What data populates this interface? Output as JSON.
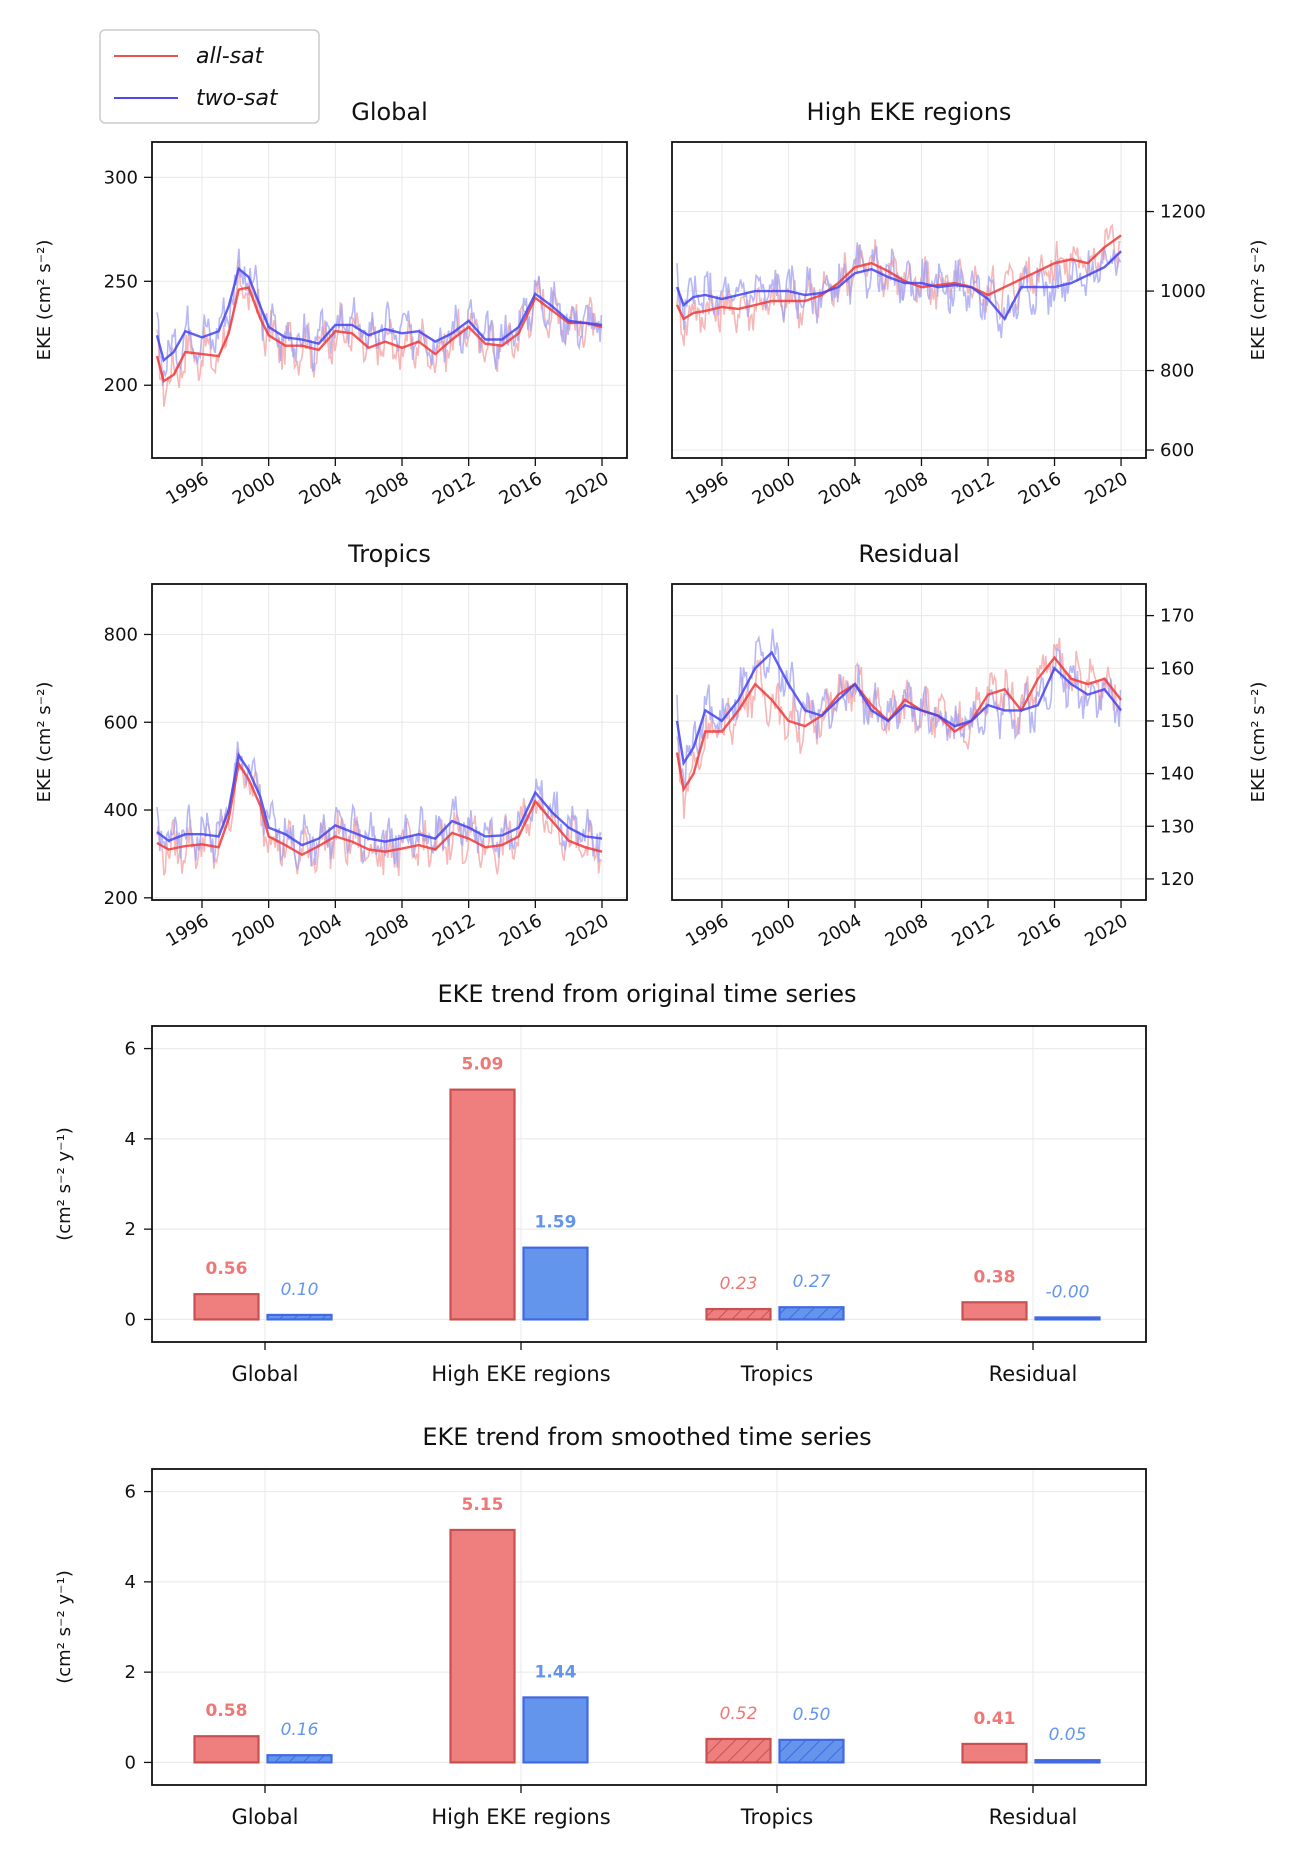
{
  "legend": {
    "entries": [
      {
        "label": "all-sat",
        "color": "#f05050"
      },
      {
        "label": "two-sat",
        "color": "#4a4af0"
      }
    ]
  },
  "colors": {
    "allsat_line": "#f03a3a",
    "twosat_line": "#4444ee",
    "allsat_raw": "#f3a0a0",
    "twosat_raw": "#a0a0f3",
    "bar_red_fill": "#ef7f7f",
    "bar_red_edge": "#c85050",
    "bar_blue_fill": "#6495ed",
    "bar_blue_edge": "#4169e1",
    "label_red": "#ee7777",
    "label_blue": "#6495ed"
  },
  "chart_data": [
    {
      "type": "line",
      "title": "Global",
      "ylabel": "EKE (cm² s⁻²)",
      "yaxis_side": "left",
      "ylim": [
        165,
        317
      ],
      "yticks": [
        200,
        250,
        300
      ],
      "xlim": [
        1993,
        2021.5
      ],
      "xticks": [
        1996,
        2000,
        2004,
        2008,
        2012,
        2016,
        2020
      ],
      "series": [
        {
          "name": "all-sat",
          "x": [
            1993.3,
            1993.7,
            1994.3,
            1995,
            1996,
            1997,
            1997.6,
            1998.2,
            1998.8,
            1999.5,
            2000,
            2001,
            2002,
            2003,
            2004,
            2005,
            2006,
            2007,
            2008,
            2009,
            2010,
            2011,
            2012,
            2013,
            2014,
            2015,
            2016,
            2017,
            2018,
            2019,
            2020
          ],
          "y": [
            214,
            202,
            205,
            216,
            215,
            214,
            225,
            246,
            247,
            232,
            224,
            219,
            219,
            217,
            226,
            225,
            218,
            221,
            218,
            221,
            215,
            222,
            228,
            220,
            219,
            225,
            242,
            236,
            230,
            230,
            228
          ]
        },
        {
          "name": "two-sat",
          "x": [
            1993.3,
            1993.7,
            1994.3,
            1995,
            1996,
            1997,
            1997.6,
            1998.2,
            1998.8,
            1999.5,
            2000,
            2001,
            2002,
            2003,
            2004,
            2005,
            2006,
            2007,
            2008,
            2009,
            2010,
            2011,
            2012,
            2013,
            2014,
            2015,
            2016,
            2017,
            2018,
            2019,
            2020
          ],
          "y": [
            224,
            212,
            216,
            226,
            223,
            226,
            238,
            256,
            252,
            238,
            228,
            223,
            222,
            220,
            229,
            229,
            224,
            227,
            225,
            226,
            221,
            225,
            231,
            222,
            222,
            228,
            244,
            238,
            231,
            230,
            229
          ]
        }
      ]
    },
    {
      "type": "line",
      "title": "High EKE regions",
      "ylabel": "EKE (cm² s⁻²)",
      "yaxis_side": "right",
      "ylim": [
        580,
        1375
      ],
      "yticks": [
        600,
        800,
        1000,
        1200
      ],
      "xlim": [
        1993,
        2021.5
      ],
      "xticks": [
        1996,
        2000,
        2004,
        2008,
        2012,
        2016,
        2020
      ],
      "series": [
        {
          "name": "all-sat",
          "x": [
            1993.3,
            1993.7,
            1994.3,
            1995,
            1996,
            1997,
            1998,
            1999,
            2000,
            2001,
            2002,
            2003,
            2004,
            2005,
            2006,
            2007,
            2008,
            2009,
            2010,
            2011,
            2012,
            2013,
            2014,
            2015,
            2016,
            2017,
            2018,
            2019,
            2020
          ],
          "y": [
            965,
            930,
            945,
            950,
            960,
            955,
            965,
            975,
            975,
            975,
            990,
            1020,
            1060,
            1070,
            1050,
            1025,
            1010,
            1015,
            1020,
            1010,
            990,
            1010,
            1030,
            1050,
            1070,
            1080,
            1070,
            1110,
            1140
          ]
        },
        {
          "name": "two-sat",
          "x": [
            1993.3,
            1993.7,
            1994.3,
            1995,
            1996,
            1997,
            1998,
            1999,
            2000,
            2001,
            2002,
            2003,
            2004,
            2005,
            2006,
            2007,
            2008,
            2009,
            2010,
            2011,
            2012,
            2013,
            2014,
            2015,
            2016,
            2017,
            2018,
            2019,
            2020
          ],
          "y": [
            1010,
            965,
            985,
            990,
            980,
            990,
            1000,
            1000,
            1000,
            990,
            995,
            1010,
            1045,
            1055,
            1035,
            1020,
            1020,
            1010,
            1015,
            1010,
            980,
            930,
            1010,
            1010,
            1010,
            1020,
            1040,
            1060,
            1100
          ]
        }
      ]
    },
    {
      "type": "line",
      "title": "Tropics",
      "ylabel": "EKE (cm² s⁻²)",
      "yaxis_side": "left",
      "ylim": [
        195,
        915
      ],
      "yticks": [
        200,
        400,
        600,
        800
      ],
      "xlim": [
        1993,
        2021.5
      ],
      "xticks": [
        1996,
        2000,
        2004,
        2008,
        2012,
        2016,
        2020
      ],
      "series": [
        {
          "name": "all-sat",
          "x": [
            1993.3,
            1994,
            1995,
            1996,
            1997,
            1997.6,
            1998.2,
            1998.8,
            1999.5,
            2000,
            2001,
            2002,
            2003,
            2004,
            2005,
            2006,
            2007,
            2008,
            2009,
            2010,
            2011,
            2012,
            2013,
            2014,
            2015,
            2016,
            2017,
            2018,
            2019,
            2020
          ],
          "y": [
            325,
            310,
            318,
            322,
            315,
            380,
            505,
            470,
            410,
            340,
            320,
            298,
            318,
            340,
            328,
            310,
            305,
            312,
            320,
            310,
            348,
            335,
            315,
            320,
            340,
            420,
            375,
            330,
            315,
            305
          ]
        },
        {
          "name": "two-sat",
          "x": [
            1993.3,
            1994,
            1995,
            1996,
            1997,
            1997.6,
            1998.2,
            1998.8,
            1999.5,
            2000,
            2001,
            2002,
            2003,
            2004,
            2005,
            2006,
            2007,
            2008,
            2009,
            2010,
            2011,
            2012,
            2013,
            2014,
            2015,
            2016,
            2017,
            2018,
            2019,
            2020
          ],
          "y": [
            350,
            330,
            345,
            345,
            340,
            400,
            525,
            490,
            430,
            360,
            345,
            320,
            335,
            365,
            350,
            335,
            328,
            336,
            345,
            335,
            375,
            360,
            340,
            342,
            360,
            440,
            395,
            360,
            340,
            335
          ]
        }
      ]
    },
    {
      "type": "line",
      "title": "Residual",
      "ylabel": "EKE (cm² s⁻²)",
      "yaxis_side": "right",
      "ylim": [
        116,
        176
      ],
      "yticks": [
        120,
        130,
        140,
        150,
        160,
        170
      ],
      "xlim": [
        1993,
        2021.5
      ],
      "xticks": [
        1996,
        2000,
        2004,
        2008,
        2012,
        2016,
        2020
      ],
      "series": [
        {
          "name": "all-sat",
          "x": [
            1993.3,
            1993.7,
            1994.3,
            1995,
            1996,
            1997,
            1998,
            1999,
            2000,
            2001,
            2002,
            2003,
            2004,
            2005,
            2006,
            2007,
            2008,
            2009,
            2010,
            2011,
            2012,
            2013,
            2014,
            2015,
            2016,
            2017,
            2018,
            2019,
            2020
          ],
          "y": [
            144,
            137,
            140,
            148,
            148,
            152,
            157,
            154,
            150,
            149,
            151,
            155,
            157,
            153,
            150,
            154,
            152,
            151,
            148,
            150,
            155,
            156,
            152,
            158,
            162,
            158,
            157,
            158,
            154
          ]
        },
        {
          "name": "two-sat",
          "x": [
            1993.3,
            1993.7,
            1994.3,
            1995,
            1996,
            1997,
            1998,
            1999,
            2000,
            2001,
            2002,
            2003,
            2004,
            2005,
            2006,
            2007,
            2008,
            2009,
            2010,
            2011,
            2012,
            2013,
            2014,
            2015,
            2016,
            2017,
            2018,
            2019,
            2020
          ],
          "y": [
            150,
            142,
            145,
            152,
            150,
            154,
            160,
            163,
            157,
            152,
            151,
            154,
            157,
            152,
            150,
            153,
            152,
            151,
            149,
            150,
            153,
            152,
            152,
            153,
            160,
            157,
            155,
            156,
            152
          ]
        }
      ]
    },
    {
      "type": "bar",
      "title": "EKE trend from original time series",
      "ylabel": "(cm² s⁻² y⁻¹)",
      "ylim": [
        -0.5,
        6.5
      ],
      "yticks": [
        0,
        2,
        4,
        6
      ],
      "categories": [
        "Global",
        "High EKE regions",
        "Tropics",
        "Residual"
      ],
      "series": [
        {
          "name": "all-sat",
          "values": [
            0.56,
            5.09,
            0.23,
            0.38
          ],
          "labels": [
            "0.56",
            "5.09",
            "0.23",
            "0.38"
          ],
          "hatched": [
            false,
            false,
            true,
            false
          ]
        },
        {
          "name": "two-sat",
          "values": [
            0.1,
            1.59,
            0.27,
            -0.0
          ],
          "labels": [
            "0.10",
            "1.59",
            "0.27",
            "-0.00"
          ],
          "hatched": [
            true,
            false,
            true,
            false
          ]
        }
      ]
    },
    {
      "type": "bar",
      "title": "EKE trend from smoothed time series",
      "ylabel": "(cm² s⁻² y⁻¹)",
      "ylim": [
        -0.5,
        6.5
      ],
      "yticks": [
        0,
        2,
        4,
        6
      ],
      "categories": [
        "Global",
        "High EKE regions",
        "Tropics",
        "Residual"
      ],
      "series": [
        {
          "name": "all-sat",
          "values": [
            0.58,
            5.15,
            0.52,
            0.41
          ],
          "labels": [
            "0.58",
            "5.15",
            "0.52",
            "0.41"
          ],
          "hatched": [
            false,
            false,
            true,
            false
          ]
        },
        {
          "name": "two-sat",
          "values": [
            0.16,
            1.44,
            0.5,
            0.05
          ],
          "labels": [
            "0.16",
            "1.44",
            "0.50",
            "0.05"
          ],
          "hatched": [
            true,
            false,
            true,
            false
          ]
        }
      ]
    }
  ]
}
